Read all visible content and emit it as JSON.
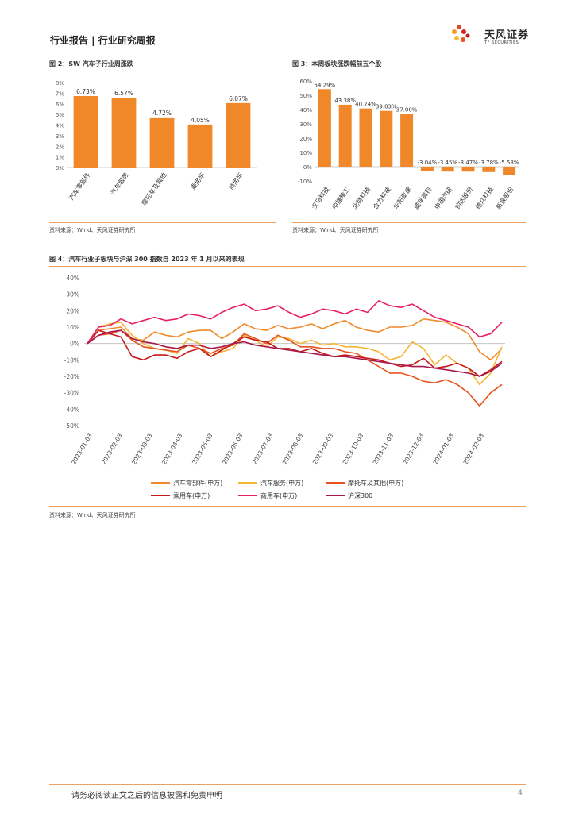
{
  "header": {
    "title": "行业报告 | 行业研究周报",
    "logo_cn": "天风证券",
    "logo_en": "TF SECURITIES",
    "accent": "#e9a060"
  },
  "figure2": {
    "title": "图 2：SW 汽车子行业周涨跌",
    "source": "资料来源：Wind、天风证券研究所",
    "chart_data": {
      "type": "bar",
      "color": "#f0882a",
      "categories": [
        "汽车零部件",
        "汽车服务",
        "摩托车及其他",
        "乘用车",
        "商用车"
      ],
      "values": [
        6.73,
        6.57,
        4.72,
        4.05,
        6.07
      ],
      "value_labels": [
        "6.73%",
        "6.57%",
        "4.72%",
        "4.05%",
        "6.07%"
      ],
      "ylim": [
        0,
        8
      ],
      "yticks": [
        "0%",
        "1%",
        "2%",
        "3%",
        "4%",
        "5%",
        "6%",
        "7%",
        "8%"
      ]
    }
  },
  "figure3": {
    "title": "图 3：本周板块涨跌幅前五个股",
    "source": "资料来源：Wind、天风证券研究所",
    "chart_data": {
      "type": "bar",
      "color": "#f0882a",
      "categories": [
        "汉马科技",
        "中捷精工",
        "北特科技",
        "合力科技",
        "华阳变速",
        "威孚高科",
        "中国汽研",
        "钧达股份",
        "德众科技",
        "新泉股份"
      ],
      "values": [
        54.29,
        43.38,
        40.74,
        39.03,
        37.0,
        -3.04,
        -3.45,
        -3.47,
        -3.78,
        -5.58
      ],
      "value_labels": [
        "54.29%",
        "43.38%",
        "40.74%",
        "39.03%",
        "37.00%",
        "-3.04%",
        "-3.45%",
        "-3.47%",
        "-3.78%",
        "-5.58%"
      ],
      "ylim": [
        -10,
        60
      ],
      "yticks": [
        "-10%",
        "0%",
        "10%",
        "20%",
        "30%",
        "40%",
        "50%",
        "60%"
      ]
    }
  },
  "figure4": {
    "title": "图 4：汽车行业子板块与沪深 300 指数自 2023 年 1 月以来的表现",
    "source": "资料来源：Wind、天风证券研究所",
    "chart_data": {
      "type": "line",
      "ylim": [
        -50,
        40
      ],
      "yticks": [
        "-50%",
        "-40%",
        "-30%",
        "-20%",
        "-10%",
        "0%",
        "10%",
        "20%",
        "30%",
        "40%"
      ],
      "x_labels": [
        "2023-01-03",
        "2023-02-03",
        "2023-03-03",
        "2023-04-03",
        "2023-05-03",
        "2023-06-03",
        "2023-07-03",
        "2023-08-03",
        "2023-09-03",
        "2023-10-03",
        "2023-11-03",
        "2023-12-03",
        "2024-01-03",
        "2024-02-03"
      ],
      "series": [
        {
          "name": "汽车零部件(申万)",
          "color": "#f08a2c",
          "values": [
            0,
            8,
            9,
            10,
            3,
            2,
            7,
            5,
            4,
            7,
            8,
            8,
            3,
            7,
            12,
            9,
            8,
            11,
            9,
            10,
            12,
            9,
            12,
            14,
            10,
            8,
            7,
            10,
            10,
            11,
            15,
            14,
            13,
            10,
            6,
            -5,
            -10,
            -3
          ]
        },
        {
          "name": "汽车服务(申万)",
          "color": "#f5b636",
          "values": [
            0,
            10,
            12,
            13,
            5,
            0,
            -3,
            -4,
            -6,
            3,
            0,
            -8,
            -5,
            -3,
            5,
            2,
            -2,
            4,
            3,
            0,
            2,
            -1,
            0,
            -2,
            -2,
            -3,
            -5,
            -10,
            -8,
            1,
            -3,
            -13,
            -7,
            -12,
            -15,
            -25,
            -18,
            -2
          ]
        },
        {
          "name": "摩托车及其他(申万)",
          "color": "#e8541e",
          "values": [
            0,
            5,
            6,
            8,
            2,
            -2,
            -3,
            -4,
            -5,
            -1,
            -3,
            -6,
            -3,
            -1,
            6,
            3,
            0,
            5,
            2,
            -2,
            -2,
            -3,
            -3,
            -5,
            -6,
            -10,
            -14,
            -18,
            -18,
            -20,
            -23,
            -24,
            -22,
            -25,
            -30,
            -38,
            -30,
            -25
          ]
        },
        {
          "name": "乘用车(申万)",
          "color": "#c41a1a",
          "values": [
            0,
            8,
            6,
            4,
            -8,
            -10,
            -7,
            -7,
            -9,
            -5,
            -3,
            -8,
            -4,
            0,
            4,
            2,
            1,
            -3,
            -3,
            -5,
            -3,
            -6,
            -8,
            -7,
            -8,
            -9,
            -10,
            -12,
            -14,
            -13,
            -9,
            -15,
            -14,
            -12,
            -15,
            -20,
            -16,
            -11
          ]
        },
        {
          "name": "商用车(申万)",
          "color": "#e81e63",
          "values": [
            0,
            10,
            11,
            15,
            12,
            14,
            16,
            14,
            15,
            18,
            17,
            15,
            19,
            22,
            24,
            20,
            21,
            23,
            19,
            16,
            18,
            21,
            20,
            18,
            21,
            19,
            26,
            23,
            22,
            24,
            20,
            16,
            14,
            12,
            10,
            4,
            6,
            13
          ]
        },
        {
          "name": "沪深300",
          "color": "#a8184c",
          "values": [
            0,
            5,
            7,
            8,
            3,
            1,
            0,
            -2,
            -3,
            -1,
            -1,
            -3,
            -2,
            0,
            1,
            -1,
            -2,
            -3,
            -4,
            -5,
            -6,
            -7,
            -8,
            -8,
            -9,
            -10,
            -11,
            -12,
            -13,
            -14,
            -14,
            -15,
            -16,
            -17,
            -18,
            -20,
            -17,
            -12
          ]
        }
      ]
    }
  },
  "footer": {
    "disclaimer": "请务必阅读正文之后的信息披露和免责申明",
    "page": "4"
  }
}
